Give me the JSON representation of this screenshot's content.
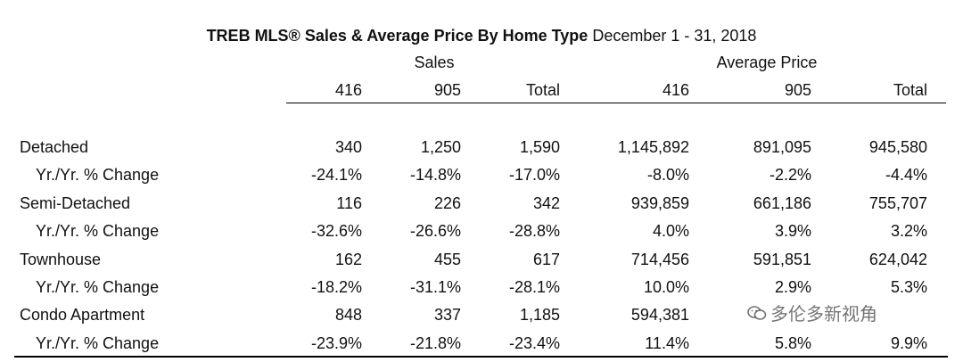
{
  "title": {
    "bold": "TREB MLS® Sales & Average Price  By Home Type",
    "normal": " December 1 - 31, 2018"
  },
  "groups": {
    "sales": "Sales",
    "price": "Average Price"
  },
  "columns": [
    "416",
    "905",
    "Total",
    "416",
    "905",
    "Total"
  ],
  "rows": [
    {
      "label": "Detached",
      "sub": false,
      "values": [
        "340",
        "1,250",
        "1,590",
        "1,145,892",
        "891,095",
        "945,580"
      ]
    },
    {
      "label": "Yr./Yr. % Change",
      "sub": true,
      "values": [
        "-24.1%",
        "-14.8%",
        "-17.0%",
        "-8.0%",
        "-2.2%",
        "-4.4%"
      ]
    },
    {
      "label": "Semi-Detached",
      "sub": false,
      "values": [
        "116",
        "226",
        "342",
        "939,859",
        "661,186",
        "755,707"
      ]
    },
    {
      "label": "Yr./Yr. % Change",
      "sub": true,
      "values": [
        "-32.6%",
        "-26.6%",
        "-28.8%",
        "4.0%",
        "3.9%",
        "3.2%"
      ]
    },
    {
      "label": "Townhouse",
      "sub": false,
      "values": [
        "162",
        "455",
        "617",
        "714,456",
        "591,851",
        "624,042"
      ]
    },
    {
      "label": "Yr./Yr. % Change",
      "sub": true,
      "values": [
        "-18.2%",
        "-31.1%",
        "-28.1%",
        "10.0%",
        "2.9%",
        "5.3%"
      ]
    },
    {
      "label": "Condo Apartment",
      "sub": false,
      "values": [
        "848",
        "337",
        "1,185",
        "594,381",
        "",
        ""
      ]
    },
    {
      "label": "Yr./Yr. % Change",
      "sub": true,
      "values": [
        "-23.9%",
        "-21.8%",
        "-23.4%",
        "11.4%",
        "5.8%",
        "9.9%"
      ]
    }
  ],
  "watermark": {
    "text": "多伦多新视角",
    "icon": "wechat-icon"
  }
}
